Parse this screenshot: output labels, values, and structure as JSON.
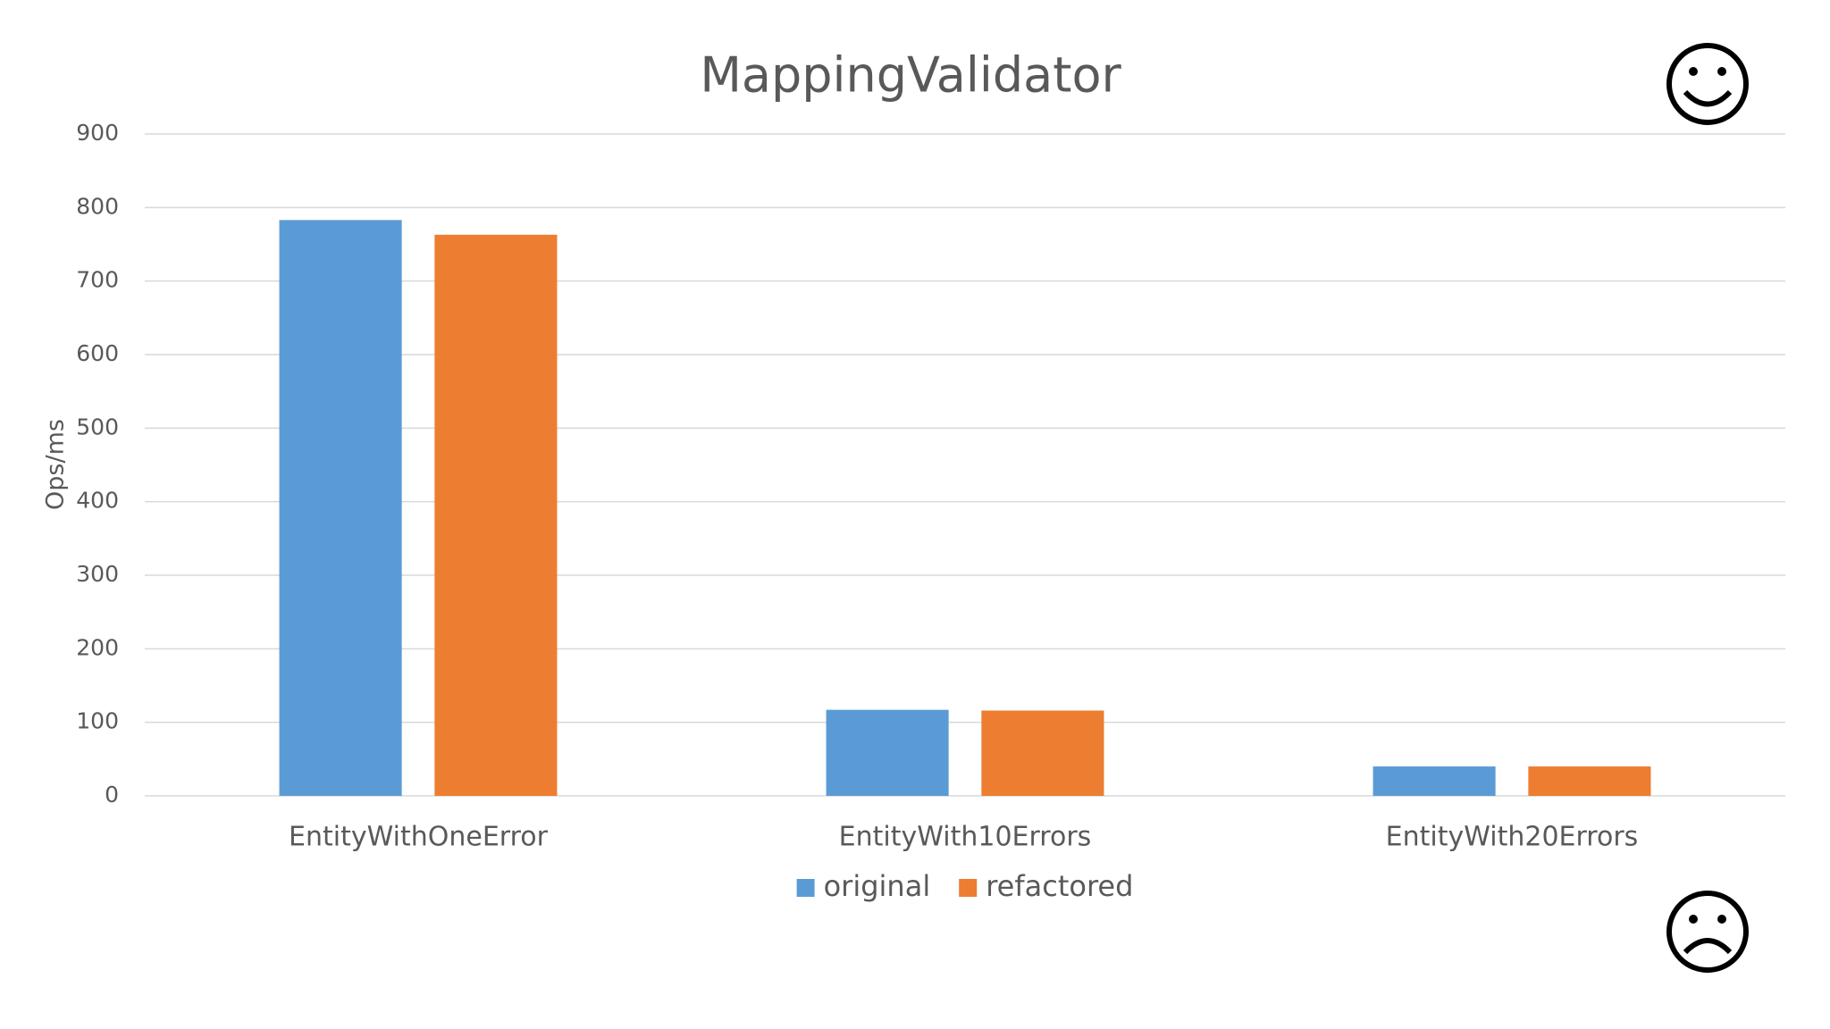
{
  "chart_data": {
    "type": "bar",
    "title": "MappingValidator",
    "y_label": "Ops/ms",
    "categories": [
      "EntityWithOneError",
      "EntityWith10Errors",
      "EntityWith20Errors"
    ],
    "series": [
      {
        "name": "original",
        "color": "#5b9bd5",
        "values": [
          783,
          117,
          40
        ]
      },
      {
        "name": "refactored",
        "color": "#ed7d31",
        "values": [
          763,
          116,
          40
        ]
      }
    ],
    "ylim": [
      0,
      900
    ],
    "yticks": [
      0,
      100,
      200,
      300,
      400,
      500,
      600,
      700,
      800,
      900
    ],
    "grid": true,
    "legend": "bottom"
  }
}
